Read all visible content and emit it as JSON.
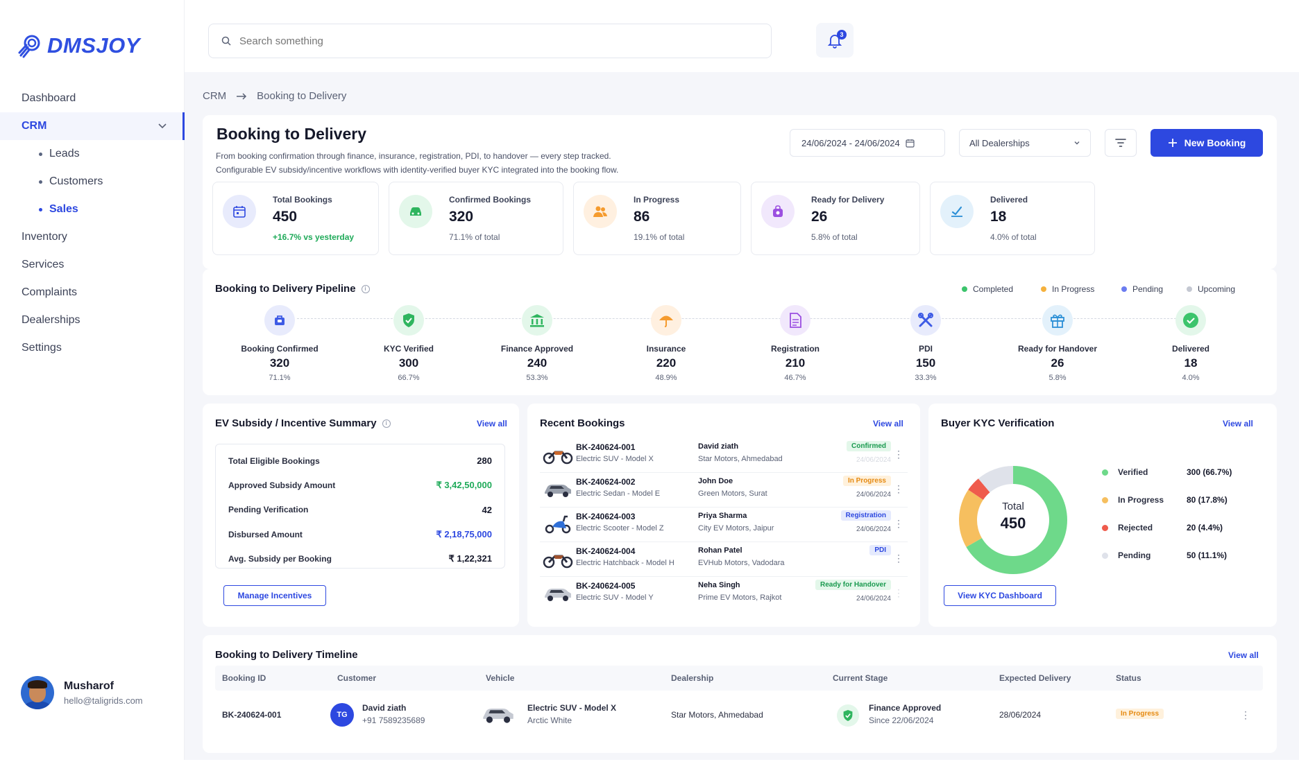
{
  "brand": {
    "name": "DMSJOY",
    "accent": "#2d48e0"
  },
  "nav": {
    "items": [
      {
        "label": "Dashboard"
      },
      {
        "label": "CRM"
      },
      {
        "label": "Inventory"
      },
      {
        "label": "Services"
      },
      {
        "label": "Complaints"
      },
      {
        "label": "Dealerships"
      },
      {
        "label": "Settings"
      }
    ],
    "crm_sub": [
      {
        "label": "Leads"
      },
      {
        "label": "Customers"
      },
      {
        "label": "Sales"
      }
    ]
  },
  "user": {
    "name": "Musharof",
    "email": "hello@taligrids.com"
  },
  "search": {
    "placeholder": "Search something"
  },
  "notifications": {
    "count": "3"
  },
  "breadcrumb": {
    "root": "CRM",
    "current": "Booking to Delivery"
  },
  "page": {
    "title": "Booking to Delivery",
    "desc1": "From booking confirmation through finance, insurance, registration, PDI, to handover — every step tracked.",
    "desc2": "Configurable EV subsidy/incentive workflows with identity-verified buyer KYC integrated into the booking flow.",
    "date_range": "24/06/2024 - 24/06/2024",
    "dealership": "All Dealerships",
    "new_booking": "New Booking"
  },
  "stats": [
    {
      "label": "Total Bookings",
      "value": "450",
      "sub": "+16.7% vs yesterday",
      "icon": "calendar-icon",
      "color": "#e8ebfc"
    },
    {
      "label": "Confirmed Bookings",
      "value": "320",
      "sub": "71.1% of total",
      "icon": "car-icon",
      "color": "#e3f7ea"
    },
    {
      "label": "In Progress",
      "value": "86",
      "sub": "19.1% of total",
      "icon": "users-icon",
      "color": "#fff0e0"
    },
    {
      "label": "Ready for Delivery",
      "value": "26",
      "sub": "5.8% of total",
      "icon": "bag-icon",
      "color": "#f1e8fc"
    },
    {
      "label": "Delivered",
      "value": "18",
      "sub": "4.0% of total",
      "icon": "check-edit-icon",
      "color": "#e3f1fb"
    }
  ],
  "pipeline": {
    "title": "Booking to Delivery Pipeline",
    "legend": [
      {
        "label": "Completed",
        "color": "#3cc46c"
      },
      {
        "label": "In Progress",
        "color": "#f5b13d"
      },
      {
        "label": "Pending",
        "color": "#6b7cf0"
      },
      {
        "label": "Upcoming",
        "color": "#c4c8d2"
      }
    ],
    "steps": [
      {
        "name": "Booking Confirmed",
        "value": "320",
        "pct": "71.1%",
        "icon": "briefcase-icon",
        "color": "#e8ebfc"
      },
      {
        "name": "KYC Verified",
        "value": "300",
        "pct": "66.7%",
        "icon": "shield-check-icon",
        "color": "#e3f7ea"
      },
      {
        "name": "Finance Approved",
        "value": "240",
        "pct": "53.3%",
        "icon": "bank-icon",
        "color": "#e3f7ea"
      },
      {
        "name": "Insurance",
        "value": "220",
        "pct": "48.9%",
        "icon": "umbrella-icon",
        "color": "#fff0e0"
      },
      {
        "name": "Registration",
        "value": "210",
        "pct": "46.7%",
        "icon": "document-icon",
        "color": "#f1e8fc"
      },
      {
        "name": "PDI",
        "value": "150",
        "pct": "33.3%",
        "icon": "tools-icon",
        "color": "#e8ebfc"
      },
      {
        "name": "Ready for Handover",
        "value": "26",
        "pct": "5.8%",
        "icon": "gift-icon",
        "color": "#e3f1fb"
      },
      {
        "name": "Delivered",
        "value": "18",
        "pct": "4.0%",
        "icon": "check-circle-icon",
        "color": "#e3f7ea"
      }
    ]
  },
  "ev": {
    "title": "EV Subsidy / Incentive Summary",
    "view_all": "View all",
    "rows": [
      {
        "label": "Total Eligible Bookings",
        "value": "280"
      },
      {
        "label": "Approved Subsidy Amount",
        "value": "₹ 3,42,50,000"
      },
      {
        "label": "Pending Verification",
        "value": "42"
      },
      {
        "label": "Disbursed Amount",
        "value": "₹ 2,18,75,000"
      },
      {
        "label": "Avg. Subsidy per Booking",
        "value": "₹ 1,22,321"
      }
    ],
    "button": "Manage Incentives"
  },
  "recent": {
    "title": "Recent Bookings",
    "view_all": "View all",
    "rows": [
      {
        "id": "BK-240624-001",
        "model": "Electric SUV - Model X",
        "customer": "David ziath",
        "dealer": "Star Motors, Ahmedabad",
        "status": "Confirmed",
        "date": "24/06/2024"
      },
      {
        "id": "BK-240624-002",
        "model": "Electric Sedan - Model E",
        "customer": "John Doe",
        "dealer": "Green Motors, Surat",
        "status": "In Progress",
        "date": "24/06/2024"
      },
      {
        "id": "BK-240624-003",
        "model": "Electric Scooter - Model Z",
        "customer": "Priya Sharma",
        "dealer": "City EV Motors, Jaipur",
        "status": "Registration",
        "date": "24/06/2024"
      },
      {
        "id": "BK-240624-004",
        "model": "Electric Hatchback - Model H",
        "customer": "Rohan Patel",
        "dealer": "EVHub Motors, Vadodara",
        "status": "PDI",
        "date": ""
      },
      {
        "id": "BK-240624-005",
        "model": "Electric SUV - Model Y",
        "customer": "Neha Singh",
        "dealer": "Prime EV Motors, Rajkot",
        "status": "Ready for Handover",
        "date": "24/06/2024"
      }
    ]
  },
  "kyc": {
    "title": "Buyer KYC Verification",
    "view_all": "View all",
    "total_label": "Total",
    "total": "450",
    "legend": [
      {
        "label": "Verified",
        "value": "300 (66.7%)",
        "color": "#6ed98a"
      },
      {
        "label": "In Progress",
        "value": "80 (17.8%)",
        "color": "#f6bf5f"
      },
      {
        "label": "Rejected",
        "value": "20 (4.4%)",
        "color": "#ef5b4c"
      },
      {
        "label": "Pending",
        "value": "50 (11.1%)",
        "color": "#dfe2ea"
      }
    ],
    "button": "View KYC Dashboard"
  },
  "chart_data": {
    "type": "pie",
    "categories": [
      "Verified",
      "In Progress",
      "Rejected",
      "Pending"
    ],
    "values": [
      300,
      80,
      20,
      50
    ],
    "title": "Buyer KYC Verification"
  },
  "timeline": {
    "title": "Booking to Delivery Timeline",
    "view_all": "View all",
    "headers": [
      "Booking ID",
      "Customer",
      "Vehicle",
      "Dealership",
      "Current Stage",
      "Expected Delivery",
      "Status"
    ],
    "row": {
      "id": "BK-240624-001",
      "initials": "TG",
      "customer": "David ziath",
      "phone": "+91 7589235689",
      "vehicle": "Electric SUV - Model X",
      "color": "Arctic White",
      "dealer": "Star Motors, Ahmedabad",
      "stage": "Finance Approved",
      "since": "Since 22/06/2024",
      "expected": "28/06/2024",
      "status": "In Progress"
    }
  }
}
